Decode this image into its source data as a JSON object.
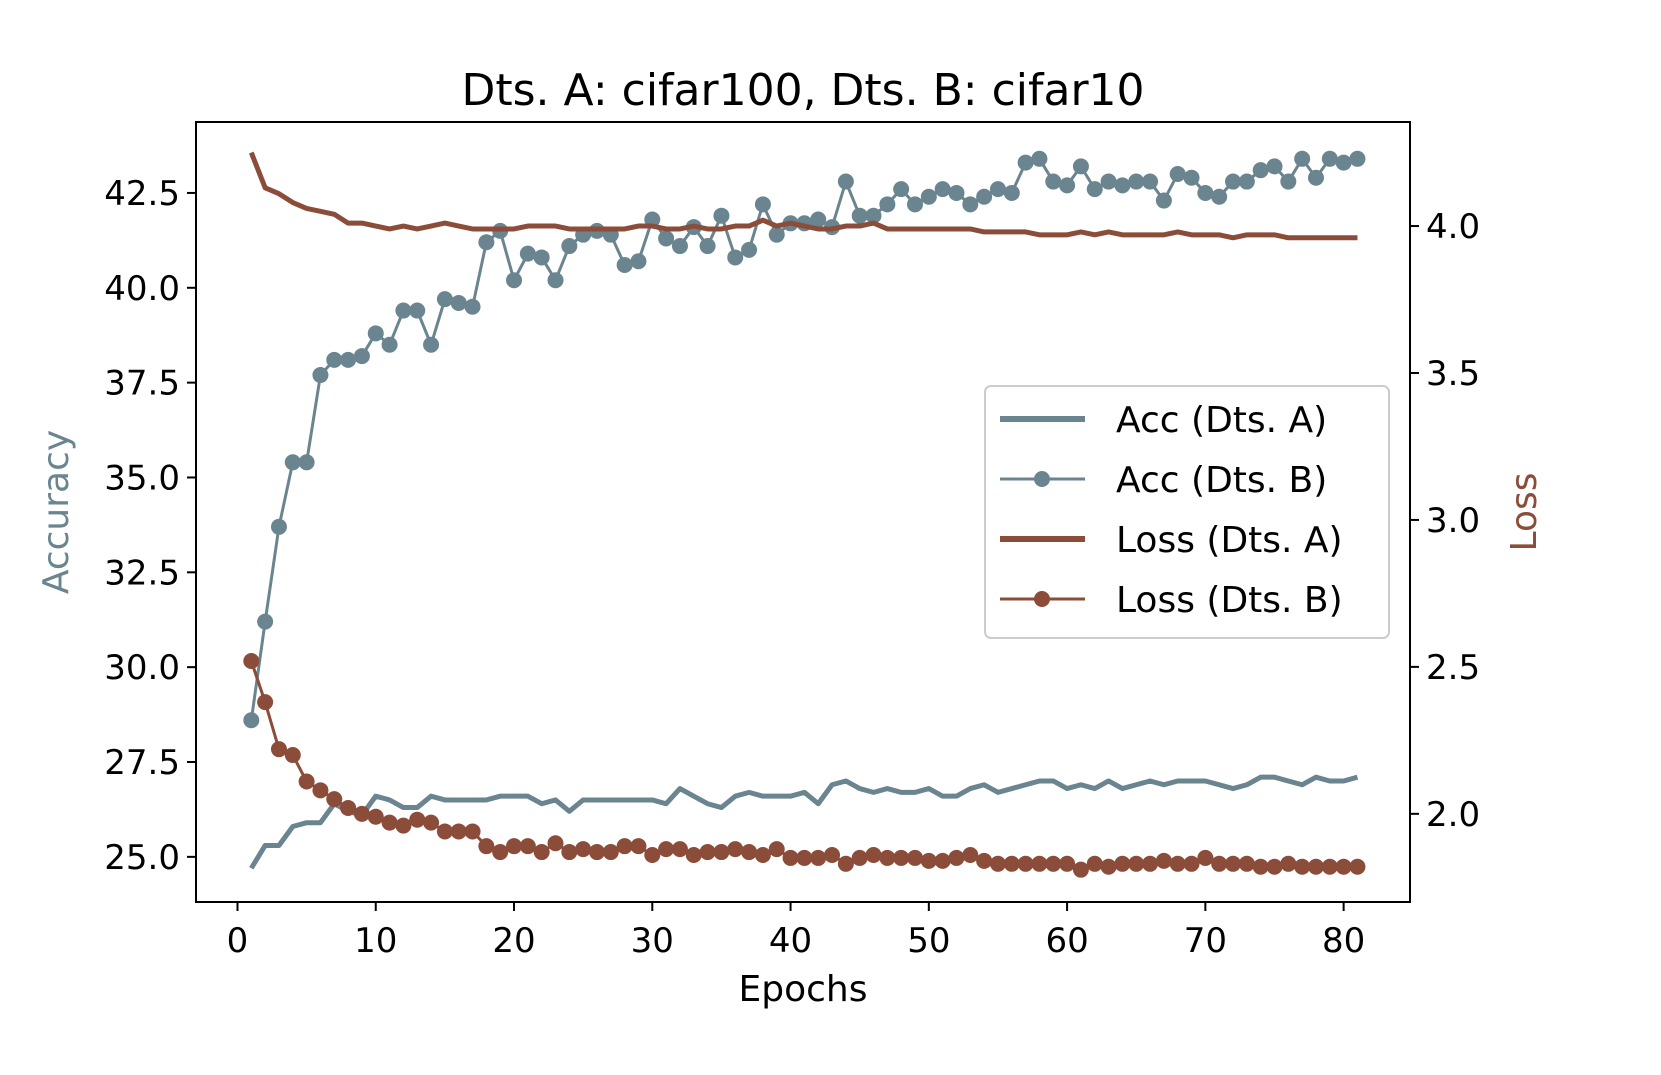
{
  "chart_data": {
    "type": "line",
    "title": "Dts. A: cifar100, Dts. B: cifar10",
    "xlabel": "Epochs",
    "ylabel": "Accuracy",
    "ylabel_right": "Loss",
    "xlim": [
      -3,
      84.8
    ],
    "ylim": [
      23.81,
      44.37
    ],
    "ylim_right": [
      1.7,
      4.354
    ],
    "xticks": [
      0,
      10,
      20,
      30,
      40,
      50,
      60,
      70,
      80
    ],
    "xtick_labels": [
      "0",
      "10",
      "20",
      "30",
      "40",
      "50",
      "60",
      "70",
      "80"
    ],
    "yticks": [
      25.0,
      27.5,
      30.0,
      32.5,
      35.0,
      37.5,
      40.0,
      42.5
    ],
    "ytick_labels": [
      "25.0",
      "27.5",
      "30.0",
      "32.5",
      "35.0",
      "37.5",
      "40.0",
      "42.5"
    ],
    "yticks_right": [
      2.0,
      2.5,
      3.0,
      3.5,
      4.0
    ],
    "ytick_labels_right": [
      "2.0",
      "2.5",
      "3.0",
      "3.5",
      "4.0"
    ],
    "grid": false,
    "legend_position": "center-right",
    "colors": {
      "acc": "#6a8590",
      "loss": "#8b4c39"
    },
    "series": [
      {
        "name": "Acc (Dts. A)",
        "axis": "left",
        "color": "#6a8590",
        "marker": false,
        "values": [
          24.7,
          25.3,
          25.3,
          25.8,
          25.9,
          25.9,
          26.4,
          26.2,
          26.1,
          26.6,
          26.5,
          26.3,
          26.3,
          26.6,
          26.5,
          26.5,
          26.5,
          26.5,
          26.6,
          26.6,
          26.6,
          26.4,
          26.5,
          26.2,
          26.5,
          26.5,
          26.5,
          26.5,
          26.5,
          26.5,
          26.4,
          26.8,
          26.6,
          26.4,
          26.3,
          26.6,
          26.7,
          26.6,
          26.6,
          26.6,
          26.7,
          26.4,
          26.9,
          27.0,
          26.8,
          26.7,
          26.8,
          26.7,
          26.7,
          26.8,
          26.6,
          26.6,
          26.8,
          26.9,
          26.7,
          26.8,
          26.9,
          27.0,
          27.0,
          26.8,
          26.9,
          26.8,
          27.0,
          26.8,
          26.9,
          27.0,
          26.9,
          27.0,
          27.0,
          27.0,
          26.9,
          26.8,
          26.9,
          27.1,
          27.1,
          27.0,
          26.9,
          27.1,
          27.0,
          27.0,
          27.1
        ]
      },
      {
        "name": "Acc (Dts. B)",
        "axis": "left",
        "color": "#6a8590",
        "marker": true,
        "values": [
          28.6,
          31.2,
          33.7,
          35.4,
          35.4,
          37.7,
          38.1,
          38.1,
          38.2,
          38.8,
          38.5,
          39.4,
          39.4,
          38.5,
          39.7,
          39.6,
          39.5,
          41.2,
          41.5,
          40.2,
          40.9,
          40.8,
          40.2,
          41.1,
          41.4,
          41.5,
          41.4,
          40.6,
          40.7,
          41.8,
          41.3,
          41.1,
          41.6,
          41.1,
          41.9,
          40.8,
          41.0,
          42.2,
          41.4,
          41.7,
          41.7,
          41.8,
          41.6,
          42.8,
          41.9,
          41.9,
          42.2,
          42.6,
          42.2,
          42.4,
          42.6,
          42.5,
          42.2,
          42.4,
          42.6,
          42.5,
          43.3,
          43.4,
          42.8,
          42.7,
          43.2,
          42.6,
          42.8,
          42.7,
          42.8,
          42.8,
          42.3,
          43.0,
          42.9,
          42.5,
          42.4,
          42.8,
          42.8,
          43.1,
          43.2,
          42.8,
          43.4,
          42.9,
          43.4,
          43.3,
          43.4
        ]
      },
      {
        "name": "Loss (Dts. A)",
        "axis": "right",
        "color": "#8b4c39",
        "marker": false,
        "values": [
          4.25,
          4.13,
          4.11,
          4.08,
          4.06,
          4.05,
          4.04,
          4.01,
          4.01,
          4.0,
          3.99,
          4.0,
          3.99,
          4.0,
          4.01,
          4.0,
          3.99,
          3.99,
          3.99,
          3.99,
          4.0,
          4.0,
          4.0,
          3.99,
          3.99,
          3.99,
          3.99,
          3.99,
          4.0,
          4.0,
          3.99,
          3.99,
          4.0,
          3.99,
          3.99,
          4.0,
          4.0,
          4.02,
          4.0,
          4.01,
          4.0,
          3.99,
          3.99,
          4.0,
          4.0,
          4.01,
          3.99,
          3.99,
          3.99,
          3.99,
          3.99,
          3.99,
          3.99,
          3.98,
          3.98,
          3.98,
          3.98,
          3.97,
          3.97,
          3.97,
          3.98,
          3.97,
          3.98,
          3.97,
          3.97,
          3.97,
          3.97,
          3.98,
          3.97,
          3.97,
          3.97,
          3.96,
          3.97,
          3.97,
          3.97,
          3.96,
          3.96,
          3.96,
          3.96,
          3.96,
          3.96
        ]
      },
      {
        "name": "Loss (Dts. B)",
        "axis": "right",
        "color": "#8b4c39",
        "marker": true,
        "values": [
          2.52,
          2.38,
          2.22,
          2.2,
          2.11,
          2.08,
          2.05,
          2.02,
          2.0,
          1.99,
          1.97,
          1.96,
          1.98,
          1.97,
          1.94,
          1.94,
          1.94,
          1.89,
          1.87,
          1.89,
          1.89,
          1.87,
          1.9,
          1.87,
          1.88,
          1.87,
          1.87,
          1.89,
          1.89,
          1.86,
          1.88,
          1.88,
          1.86,
          1.87,
          1.87,
          1.88,
          1.87,
          1.86,
          1.88,
          1.85,
          1.85,
          1.85,
          1.86,
          1.83,
          1.85,
          1.86,
          1.85,
          1.85,
          1.85,
          1.84,
          1.84,
          1.85,
          1.86,
          1.84,
          1.83,
          1.83,
          1.83,
          1.83,
          1.83,
          1.83,
          1.81,
          1.83,
          1.82,
          1.83,
          1.83,
          1.83,
          1.84,
          1.83,
          1.83,
          1.85,
          1.83,
          1.83,
          1.83,
          1.82,
          1.82,
          1.83,
          1.82,
          1.82,
          1.82,
          1.82,
          1.82
        ]
      }
    ],
    "x_start": 1
  }
}
